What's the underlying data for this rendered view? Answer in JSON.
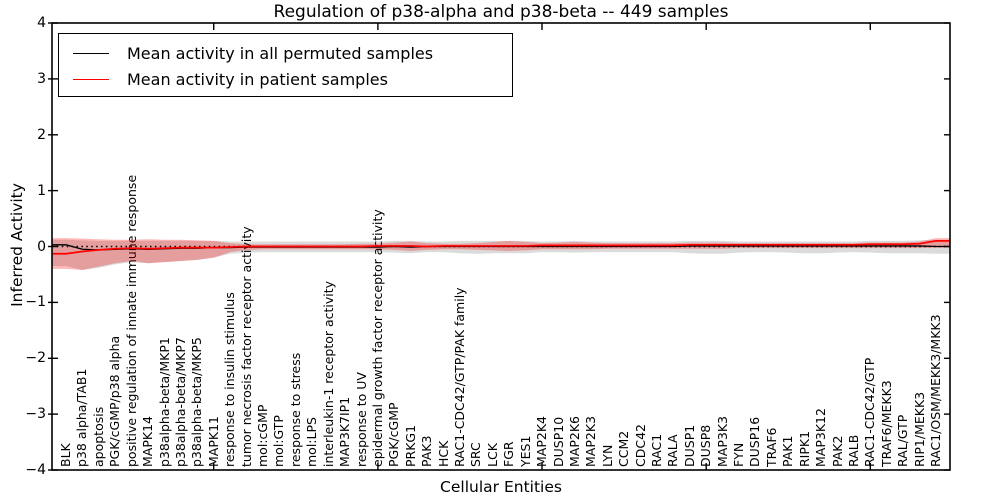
{
  "chart": {
    "title": "Regulation of p38-alpha and p38-beta -- 449 samples",
    "xlabel": "Cellular Entities",
    "ylabel": "Inferred Activity",
    "y_tick_labels": [
      "4",
      "3",
      "2",
      "1",
      "0",
      "−1",
      "−2",
      "−3",
      "−4"
    ]
  },
  "legend": {
    "items": [
      {
        "label": "Mean activity in all permuted samples",
        "color": "#000000"
      },
      {
        "label": "Mean activity in patient samples",
        "color": "#ff0000"
      }
    ]
  },
  "chart_data": {
    "type": "line",
    "title": "Regulation of p38-alpha and p38-beta -- 449 samples",
    "xlabel": "Cellular Entities",
    "ylabel": "Inferred Activity",
    "ylim": [
      -4,
      4
    ],
    "y_ticks": [
      -4,
      -3,
      -2,
      -1,
      0,
      1,
      2,
      3,
      4
    ],
    "x_major_tick_indices": [
      9,
      19,
      29,
      39,
      49
    ],
    "zero_reference_line": true,
    "legend_position": "upper left",
    "grid": false,
    "categories": [
      "BLK",
      "p38 alpha/TAB1",
      "apoptosis",
      "PGK/cGMP/p38 alpha",
      "positive regulation of innate immune response",
      "MAPK14",
      "p38alpha-beta/MKP1",
      "p38alpha-beta/MKP7",
      "p38alpha-beta/MKP5",
      "MAPK11",
      "response to insulin stimulus",
      "tumor necrosis factor receptor activity",
      "mol:cGMP",
      "mol:GTP",
      "response to stress",
      "mol:LPS",
      "interleukin-1 receptor activity",
      "MAP3K7IP1",
      "response to UV",
      "epidermal growth factor receptor activity",
      "PGK/cGMP",
      "PRKG1",
      "PAK3",
      "HCK",
      "RAC1-CDC42/GTP/PAK family",
      "SRC",
      "LCK",
      "FGR",
      "YES1",
      "MAP2K4",
      "DUSP10",
      "MAP2K6",
      "MAP2K3",
      "LYN",
      "CCM2",
      "CDC42",
      "RAC1",
      "RALA",
      "DUSP1",
      "DUSP8",
      "MAP3K3",
      "FYN",
      "DUSP16",
      "TRAF6",
      "PAK1",
      "RIPK1",
      "MAP3K12",
      "PAK2",
      "RALB",
      "RAC1-CDC42/GTP",
      "TRAF6/MEKK3",
      "RAL/GTP",
      "RIP1/MEKK3",
      "RAC1/OSM/MEKK3/MKK3"
    ],
    "series": [
      {
        "id": "permuted_band",
        "name": "Permuted samples band",
        "kind": "band",
        "fill": "rgba(0,0,0,0.14)",
        "hi": [
          0.12,
          0.11,
          0.1,
          0.1,
          0.1,
          0.1,
          0.1,
          0.1,
          0.1,
          0.1,
          0.09,
          0.09,
          0.09,
          0.09,
          0.09,
          0.09,
          0.09,
          0.09,
          0.09,
          0.09,
          0.1,
          0.1,
          0.09,
          0.09,
          0.1,
          0.1,
          0.1,
          0.1,
          0.1,
          0.09,
          0.09,
          0.1,
          0.09,
          0.09,
          0.09,
          0.09,
          0.09,
          0.09,
          0.1,
          0.1,
          0.1,
          0.09,
          0.09,
          0.09,
          0.09,
          0.09,
          0.09,
          0.09,
          0.09,
          0.1,
          0.1,
          0.1,
          0.11,
          0.12
        ],
        "lo": [
          -0.35,
          -0.42,
          -0.38,
          -0.32,
          -0.28,
          -0.3,
          -0.28,
          -0.26,
          -0.24,
          -0.2,
          -0.13,
          -0.11,
          -0.1,
          -0.1,
          -0.1,
          -0.1,
          -0.1,
          -0.1,
          -0.1,
          -0.1,
          -0.11,
          -0.12,
          -0.1,
          -0.1,
          -0.12,
          -0.13,
          -0.12,
          -0.12,
          -0.12,
          -0.1,
          -0.1,
          -0.11,
          -0.1,
          -0.1,
          -0.1,
          -0.1,
          -0.1,
          -0.1,
          -0.12,
          -0.13,
          -0.13,
          -0.11,
          -0.1,
          -0.1,
          -0.11,
          -0.12,
          -0.12,
          -0.11,
          -0.1,
          -0.11,
          -0.12,
          -0.12,
          -0.12,
          -0.13
        ]
      },
      {
        "id": "patient_band",
        "name": "Patient samples band",
        "kind": "band",
        "fill": "rgba(255,0,0,0.28)",
        "hi": [
          0.15,
          0.14,
          0.13,
          0.12,
          0.12,
          0.13,
          0.12,
          0.12,
          0.11,
          0.1,
          0.06,
          0.04,
          0.04,
          0.04,
          0.04,
          0.04,
          0.04,
          0.04,
          0.05,
          0.05,
          0.07,
          0.09,
          0.06,
          0.05,
          0.05,
          0.06,
          0.08,
          0.1,
          0.08,
          0.06,
          0.07,
          0.08,
          0.07,
          0.06,
          0.06,
          0.06,
          0.06,
          0.06,
          0.07,
          0.07,
          0.07,
          0.06,
          0.06,
          0.06,
          0.06,
          0.06,
          0.06,
          0.06,
          0.06,
          0.07,
          0.07,
          0.07,
          0.09,
          0.15
        ],
        "lo": [
          -0.4,
          -0.42,
          -0.36,
          -0.3,
          -0.26,
          -0.3,
          -0.28,
          -0.26,
          -0.24,
          -0.2,
          -0.1,
          -0.06,
          -0.05,
          -0.05,
          -0.05,
          -0.05,
          -0.05,
          -0.05,
          -0.05,
          -0.05,
          -0.06,
          -0.08,
          -0.06,
          -0.05,
          -0.05,
          -0.06,
          -0.07,
          -0.08,
          -0.07,
          -0.05,
          -0.05,
          -0.05,
          -0.05,
          -0.04,
          -0.04,
          -0.04,
          -0.04,
          -0.04,
          -0.04,
          -0.04,
          -0.04,
          -0.03,
          -0.03,
          -0.03,
          -0.03,
          -0.03,
          -0.03,
          -0.03,
          -0.03,
          -0.03,
          -0.03,
          -0.03,
          -0.03,
          -0.02
        ]
      },
      {
        "id": "permuted_mean",
        "name": "Mean activity in all permuted samples",
        "kind": "line",
        "color": "#000000",
        "width": 1.3,
        "values": [
          0.03,
          -0.05,
          -0.06,
          -0.05,
          -0.04,
          -0.05,
          -0.04,
          -0.03,
          -0.03,
          -0.02,
          -0.02,
          -0.01,
          -0.01,
          -0.01,
          -0.01,
          -0.01,
          -0.01,
          -0.01,
          -0.01,
          -0.01,
          0,
          -0.01,
          0,
          0,
          0,
          0,
          0,
          0,
          0,
          0,
          0,
          0,
          0,
          0,
          0,
          0,
          0,
          0,
          0.01,
          0.01,
          0.01,
          0.01,
          0.01,
          0.01,
          0.01,
          0.01,
          0.01,
          0.01,
          0.01,
          0.01,
          0.01,
          0.01,
          0.01,
          0
        ]
      },
      {
        "id": "patient_mean",
        "name": "Mean activity in patient samples",
        "kind": "line",
        "color": "#ff0000",
        "width": 1.7,
        "values": [
          -0.13,
          -0.09,
          -0.06,
          -0.04,
          -0.03,
          -0.04,
          -0.03,
          -0.02,
          -0.02,
          -0.02,
          -0.01,
          0,
          0,
          0,
          0,
          0,
          0,
          0,
          0,
          0.01,
          0.01,
          0.01,
          0,
          0.01,
          0.01,
          0.01,
          0.01,
          0.01,
          0.01,
          0.02,
          0.02,
          0.02,
          0.02,
          0.02,
          0.02,
          0.02,
          0.02,
          0.02,
          0.03,
          0.03,
          0.03,
          0.03,
          0.03,
          0.03,
          0.03,
          0.03,
          0.03,
          0.03,
          0.03,
          0.04,
          0.04,
          0.04,
          0.05,
          0.1
        ]
      }
    ]
  }
}
